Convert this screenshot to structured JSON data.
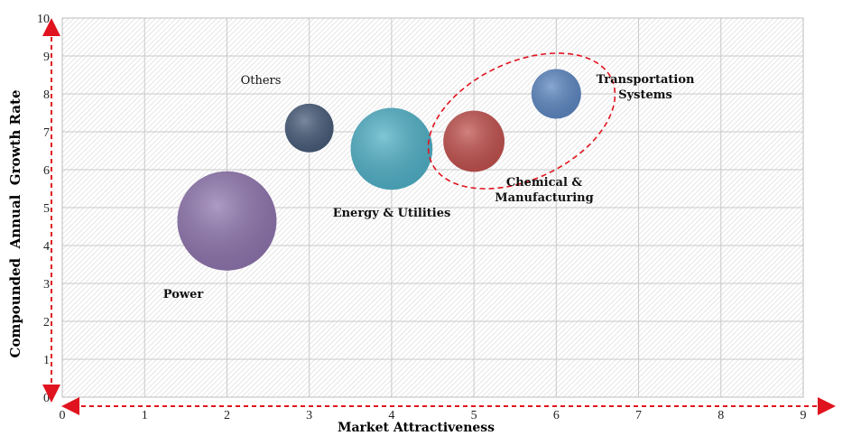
{
  "chart_data": {
    "type": "scatter",
    "subtype": "bubble",
    "title": "",
    "xlabel": "Market Attractiveness",
    "ylabel": "Compounded  Annual  Growth Rate",
    "xlim": [
      0,
      9
    ],
    "ylim": [
      0,
      10
    ],
    "x_ticks": [
      "0",
      "1",
      "2",
      "3",
      "4",
      "5",
      "6",
      "7",
      "8",
      "9"
    ],
    "y_ticks": [
      "0",
      "1",
      "2",
      "3",
      "4",
      "5",
      "6",
      "7",
      "8",
      "9",
      "10"
    ],
    "grid": true,
    "grid_style": "hatched-gray",
    "series": [
      {
        "name": "Power",
        "x": 2,
        "y": 4.65,
        "size": 1.0,
        "color": "#8e74ad",
        "label_lines": [
          "Power"
        ],
        "bold": true
      },
      {
        "name": "Others",
        "x": 3,
        "y": 7.1,
        "size": 0.24,
        "color": "#465a78",
        "label_lines": [
          "Others"
        ],
        "bold": false
      },
      {
        "name": "Energy & Utilities",
        "x": 4,
        "y": 6.55,
        "size": 0.68,
        "color": "#4fb0c6",
        "label_lines": [
          "Energy & Utilities"
        ],
        "bold": true
      },
      {
        "name": "Chemical & Manufacturing",
        "x": 5,
        "y": 6.75,
        "size": 0.38,
        "color": "#c0504d",
        "label_lines": [
          "Chemical &",
          "Manufacturing"
        ],
        "bold": true
      },
      {
        "name": "Transportation Systems",
        "x": 6,
        "y": 8.0,
        "size": 0.25,
        "color": "#5b86c0",
        "label_lines": [
          "Transportation",
          "Systems"
        ],
        "bold": true
      }
    ],
    "highlight": {
      "type": "dashed-ellipse",
      "color": "#e0141e",
      "encloses": [
        "Chemical & Manufacturing",
        "Transportation Systems"
      ]
    },
    "axis_arrows": {
      "color": "#e0141e",
      "style": "dashed"
    }
  }
}
